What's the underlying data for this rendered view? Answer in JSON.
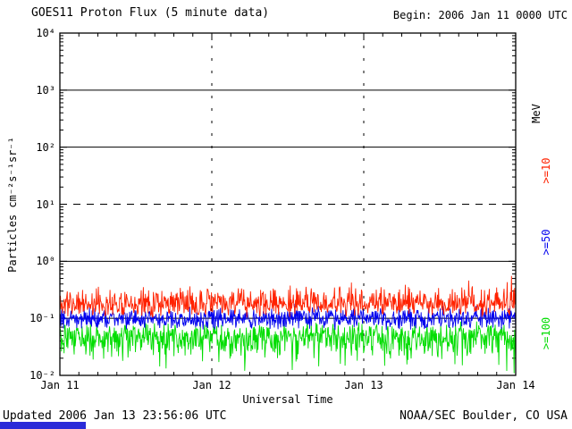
{
  "texts": {
    "title": "GOES11 Proton Flux (5 minute data)",
    "begin": "Begin: 2006 Jan 11 0000 UTC",
    "y_axis_label": "Particles cm⁻²s⁻¹sr⁻¹",
    "x_axis_label": "Universal Time",
    "updated": "Updated 2006 Jan 13 23:56:06 UTC",
    "credit": "NOAA/SEC Boulder, CO USA"
  },
  "right_axis_labels": [
    {
      "text": "MeV",
      "color": "#000000"
    },
    {
      "text": ">=10",
      "color": "#ff2200"
    },
    {
      "text": ">=50",
      "color": "#0000ee"
    },
    {
      "text": ">=100",
      "color": "#00dd00"
    }
  ],
  "footer_bar_color": "#2b2bd8",
  "chart_data": {
    "type": "line",
    "title": "GOES11 Proton Flux (5 minute data)",
    "xlabel": "Universal Time",
    "ylabel": "Particles cm⁻²s⁻¹sr⁻¹ (log scale)",
    "x_range": [
      "2006 Jan 11 0000 UTC",
      "2006 Jan 14 0000 UTC"
    ],
    "points_per_day": 288,
    "y_log_range": [
      -2,
      4
    ],
    "y_ticks": [
      {
        "label": "10⁴",
        "exp": 4
      },
      {
        "label": "10³",
        "exp": 3
      },
      {
        "label": "10²",
        "exp": 2
      },
      {
        "label": "10¹",
        "exp": 1
      },
      {
        "label": "10⁰",
        "exp": 0
      },
      {
        "label": "10⁻¹",
        "exp": -1
      },
      {
        "label": "10⁻²",
        "exp": -2
      }
    ],
    "x_ticks": [
      {
        "label": "Jan 11",
        "day": 0
      },
      {
        "label": "Jan 12",
        "day": 1
      },
      {
        "label": "Jan 13",
        "day": 2
      },
      {
        "label": "Jan 14",
        "day": 3
      }
    ],
    "gridlines": {
      "solid_exps": [
        3,
        2,
        0,
        -1
      ],
      "dashed_exps": [
        1
      ],
      "vline_days": [
        1,
        2
      ]
    },
    "legend_position": "right",
    "series": [
      {
        "name": ">=10 MeV",
        "color": "#ff2200",
        "approx_mean_flux": 0.18,
        "approx_range": [
          0.08,
          0.5
        ],
        "gen": {
          "seed": 11,
          "mean_log": -0.75,
          "up": 0.33,
          "down": 0.24,
          "spike_p": 0.05,
          "spike_amp": 0.28,
          "spike_dir": 1
        }
      },
      {
        "name": ">=50 MeV",
        "color": "#0000ee",
        "approx_mean_flux": 0.1,
        "approx_range": [
          0.05,
          0.2
        ],
        "gen": {
          "seed": 52,
          "mean_log": -1.0,
          "up": 0.2,
          "down": 0.22,
          "spike_p": 0.03,
          "spike_amp": 0.18,
          "spike_dir": 1
        }
      },
      {
        "name": ">=100 MeV",
        "color": "#00dd00",
        "approx_mean_flux": 0.045,
        "approx_range": [
          0.012,
          0.09
        ],
        "gen": {
          "seed": 107,
          "mean_log": -1.32,
          "up": 0.27,
          "down": 0.42,
          "spike_p": 0.09,
          "spike_amp": 0.45,
          "spike_dir": -1
        }
      }
    ]
  }
}
